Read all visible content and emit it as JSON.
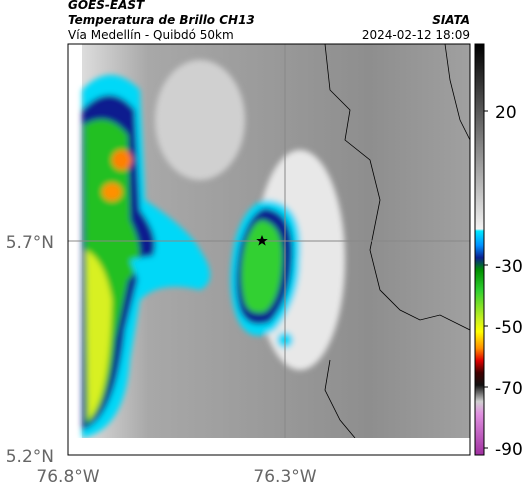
{
  "header": {
    "source": "GOES-EAST",
    "title": "Temperatura de Brillo CH13",
    "subtitle": "Vía Medellín - Quibdó 50km",
    "agency": "SIATA",
    "datetime": "2024-02-12 18:09"
  },
  "axes": {
    "lat_ticks": [
      "5.7°N",
      "5.2°N"
    ],
    "lon_ticks": [
      "76.8°W",
      "76.3°W"
    ]
  },
  "colorbar": {
    "ticks": [
      "20",
      "-30",
      "-50",
      "-70",
      "-90"
    ]
  }
}
